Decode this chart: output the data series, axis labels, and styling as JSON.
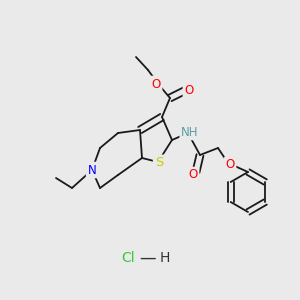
{
  "background_color": "#eaeaea",
  "bond_color": "#1a1a1a",
  "atom_colors": {
    "O": "#ff0000",
    "N": "#0000ff",
    "S": "#cccc00",
    "NH_color": "#5f9ea0",
    "Cl": "#33cc33",
    "H_hcl": "#000000"
  },
  "font_size_atoms": 8.5,
  "font_size_hcl": 10
}
